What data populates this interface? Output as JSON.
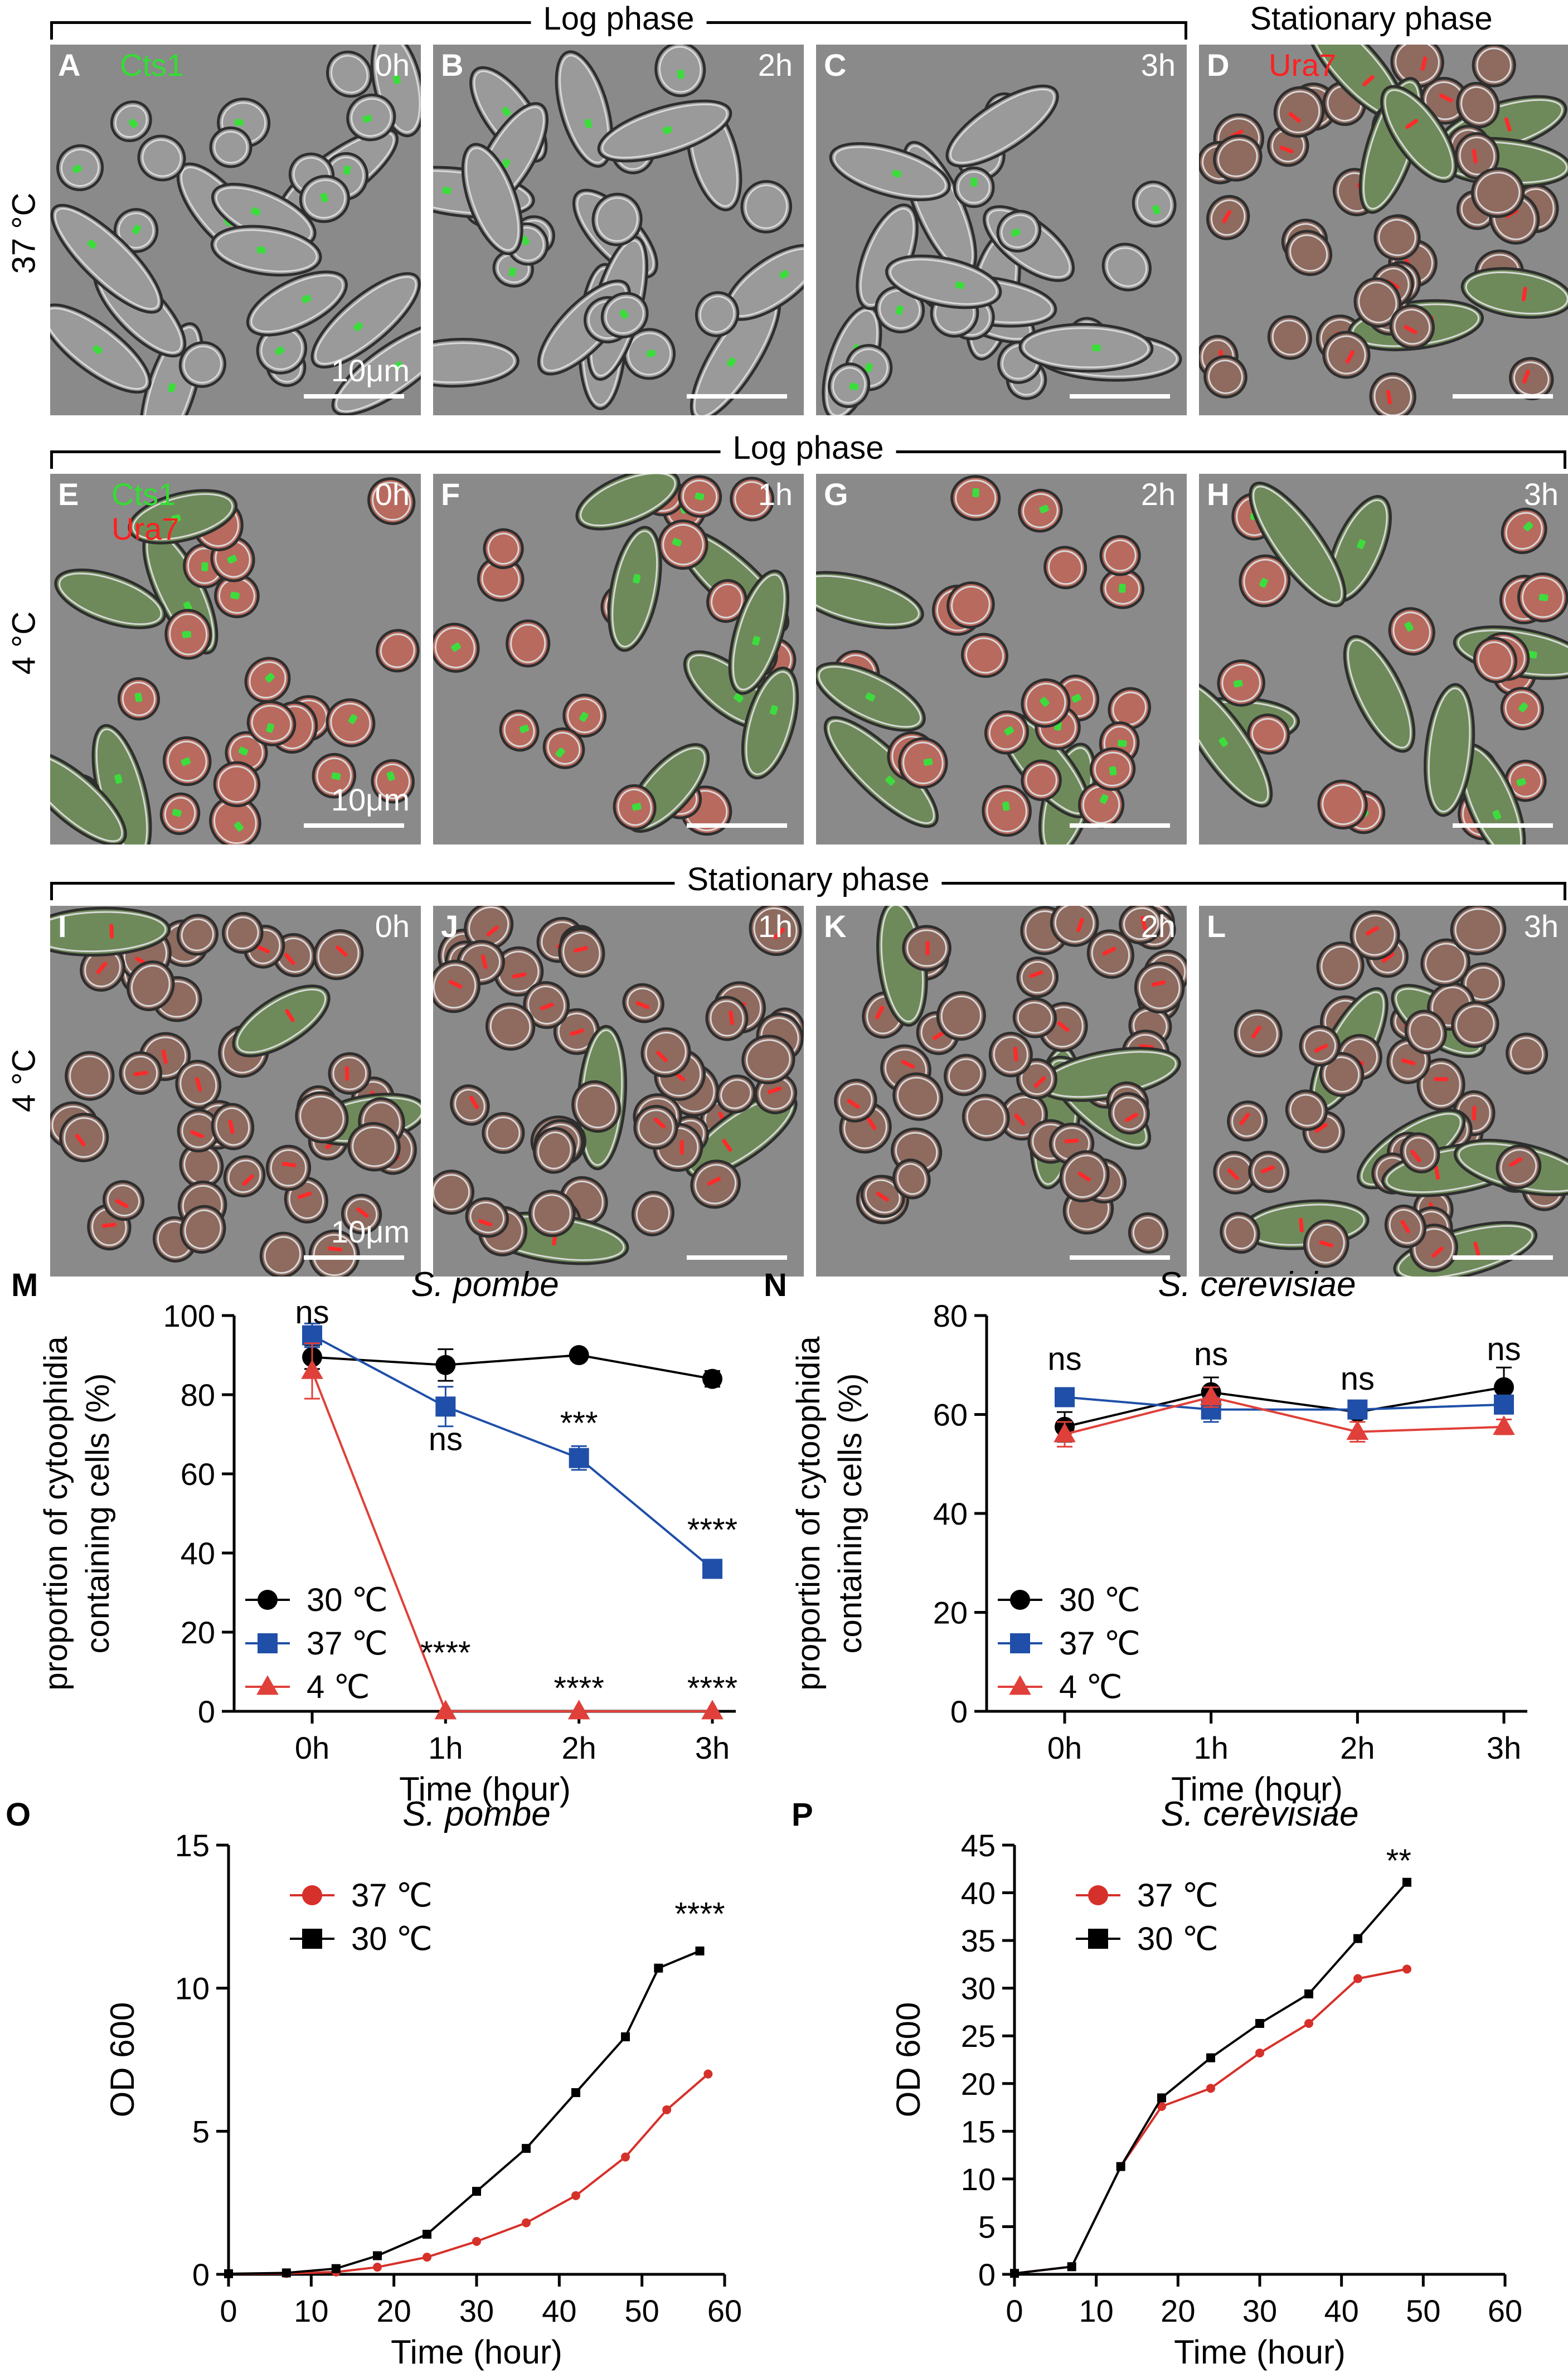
{
  "brackets": {
    "log_top": "Log phase",
    "stationary_top": "Stationary phase",
    "log_mid": "Log phase",
    "stationary_bottom": "Stationary phase"
  },
  "row_labels": {
    "r1": "37 °C",
    "r2": "4 °C",
    "r3": "4 °C"
  },
  "panels": [
    {
      "letter": "A",
      "time": "0h",
      "markers": [
        {
          "text": "Cts1",
          "color": "#33dd33"
        }
      ],
      "scale": "10μm",
      "cells": "log",
      "signal": "#3ddc3d"
    },
    {
      "letter": "B",
      "time": "2h",
      "markers": [],
      "scale": "",
      "cells": "log",
      "signal": "#3ddc3d"
    },
    {
      "letter": "C",
      "time": "3h",
      "markers": [],
      "scale": "",
      "cells": "log",
      "signal": "#3ddc3d"
    },
    {
      "letter": "D",
      "time": "",
      "markers": [
        {
          "text": "Ura7",
          "color": "#ff2020"
        }
      ],
      "scale": "",
      "cells": "stationary",
      "signal": "#ff2a2a"
    },
    {
      "letter": "E",
      "time": "0h",
      "markers": [
        {
          "text": "Cts1",
          "color": "#33dd33"
        },
        {
          "text": "Ura7",
          "color": "#ff2020"
        }
      ],
      "scale": "10μm",
      "cells": "mixed",
      "signal": "#3ddc3d"
    },
    {
      "letter": "F",
      "time": "1h",
      "markers": [],
      "scale": "",
      "cells": "mixed",
      "signal": "#3ddc3d"
    },
    {
      "letter": "G",
      "time": "2h",
      "markers": [],
      "scale": "",
      "cells": "mixed",
      "signal": "#3ddc3d"
    },
    {
      "letter": "H",
      "time": "3h",
      "markers": [],
      "scale": "",
      "cells": "mixed",
      "signal": "#3ddc3d"
    },
    {
      "letter": "I",
      "time": "0h",
      "markers": [],
      "scale": "10μm",
      "cells": "stationary",
      "signal": "#ff2a2a"
    },
    {
      "letter": "J",
      "time": "1h",
      "markers": [],
      "scale": "",
      "cells": "stationary",
      "signal": "#ff2a2a"
    },
    {
      "letter": "K",
      "time": "2h",
      "markers": [],
      "scale": "",
      "cells": "stationary",
      "signal": "#ff2a2a"
    },
    {
      "letter": "L",
      "time": "3h",
      "markers": [],
      "scale": "",
      "cells": "stationary",
      "signal": "#ff2a2a"
    }
  ],
  "chart_data": [
    {
      "id": "M",
      "letter": "M",
      "type": "line",
      "title": "S. pombe",
      "ylabel_line1": "proportion of cytoophidia",
      "ylabel_line2": "containing cells (%)",
      "xlabel": "Time (hour)",
      "categories": [
        "0h",
        "1h",
        "2h",
        "3h"
      ],
      "ylim": [
        0,
        100
      ],
      "yticks": [
        0,
        20,
        40,
        60,
        80,
        100
      ],
      "series": [
        {
          "name": "30 ℃",
          "color": "#000000",
          "marker": "circle",
          "values": [
            89.5,
            87.5,
            90,
            84
          ],
          "err": [
            3,
            4,
            1,
            2
          ]
        },
        {
          "name": "37 ℃",
          "color": "#1f4fa8",
          "marker": "square",
          "values": [
            95,
            77,
            64,
            36
          ],
          "err": [
            3,
            5,
            3,
            1
          ]
        },
        {
          "name": "4 ℃",
          "color": "#e0403a",
          "marker": "triangle",
          "values": [
            86,
            0,
            0,
            0
          ],
          "err": [
            7,
            0,
            0,
            0
          ]
        }
      ],
      "annotations": [
        {
          "cat": 0,
          "y": 98,
          "text": "ns"
        },
        {
          "cat": 1,
          "y": 66,
          "text": "ns"
        },
        {
          "cat": 1,
          "y": 12,
          "text": "****"
        },
        {
          "cat": 2,
          "y": 70,
          "text": "***"
        },
        {
          "cat": 2,
          "y": 3,
          "text": "****"
        },
        {
          "cat": 3,
          "y": 43,
          "text": "****"
        },
        {
          "cat": 3,
          "y": 3,
          "text": "****"
        }
      ]
    },
    {
      "id": "N",
      "letter": "N",
      "type": "line",
      "title": "S. cerevisiae",
      "ylabel_line1": "proportion of cytoophidia",
      "ylabel_line2": "containing cells (%)",
      "xlabel": "Time (hour)",
      "categories": [
        "0h",
        "1h",
        "2h",
        "3h"
      ],
      "ylim": [
        0,
        80
      ],
      "yticks": [
        0,
        20,
        40,
        60,
        80
      ],
      "series": [
        {
          "name": "30 ℃",
          "color": "#000000",
          "marker": "circle",
          "values": [
            57.5,
            64.5,
            60.5,
            65.5
          ],
          "err": [
            3,
            3,
            1,
            4
          ]
        },
        {
          "name": "37 ℃",
          "color": "#1f4fa8",
          "marker": "square",
          "values": [
            63.5,
            61,
            61,
            62
          ],
          "err": [
            1,
            2.5,
            1,
            1.5
          ]
        },
        {
          "name": "4 ℃",
          "color": "#e0403a",
          "marker": "triangle",
          "values": [
            56,
            63.5,
            56.5,
            57.5
          ],
          "err": [
            2.5,
            2,
            2,
            1.5
          ]
        }
      ],
      "annotations": [
        {
          "cat": 0,
          "y": 69,
          "text": "ns"
        },
        {
          "cat": 1,
          "y": 70,
          "text": "ns"
        },
        {
          "cat": 2,
          "y": 65,
          "text": "ns"
        },
        {
          "cat": 3,
          "y": 71,
          "text": "ns"
        }
      ]
    },
    {
      "id": "O",
      "letter": "O",
      "type": "line",
      "title": "S. pombe",
      "ylabel": "OD 600",
      "xlabel": "Time (hour)",
      "xlim": [
        0,
        60
      ],
      "xticks": [
        0,
        10,
        20,
        30,
        40,
        50,
        60
      ],
      "ylim": [
        0,
        15
      ],
      "yticks": [
        0,
        5,
        10,
        15
      ],
      "series": [
        {
          "name": "37 ℃",
          "color": "#d6302a",
          "marker": "circle",
          "x": [
            0,
            7,
            13,
            18,
            24,
            30,
            36,
            42,
            48,
            53,
            58
          ],
          "y": [
            0.02,
            0.03,
            0.08,
            0.25,
            0.6,
            1.15,
            1.8,
            2.75,
            4.1,
            5.75,
            7.0
          ]
        },
        {
          "name": "30 ℃",
          "color": "#000000",
          "marker": "square",
          "x": [
            0,
            7,
            13,
            18,
            24,
            30,
            36,
            42,
            48,
            52,
            57
          ],
          "y": [
            0.02,
            0.05,
            0.2,
            0.65,
            1.4,
            2.9,
            4.4,
            6.35,
            8.3,
            10.7,
            11.3
          ]
        }
      ],
      "annotations": [
        {
          "x": 57,
          "y": 12.2,
          "text": "****"
        }
      ]
    },
    {
      "id": "P",
      "letter": "P",
      "type": "line",
      "title": "S. cerevisiae",
      "ylabel": "OD 600",
      "xlabel": "Time (hour)",
      "xlim": [
        0,
        60
      ],
      "xticks": [
        0,
        10,
        20,
        30,
        40,
        50,
        60
      ],
      "ylim": [
        0,
        45
      ],
      "yticks": [
        0,
        5,
        10,
        15,
        20,
        25,
        30,
        35,
        40,
        45
      ],
      "series": [
        {
          "name": "37 ℃",
          "color": "#d6302a",
          "marker": "circle",
          "x": [
            0,
            7,
            13,
            18,
            24,
            30,
            36,
            42,
            48
          ],
          "y": [
            0.1,
            0.8,
            11.3,
            17.6,
            19.5,
            23.2,
            26.3,
            31.0,
            32.0
          ]
        },
        {
          "name": "30 ℃",
          "color": "#000000",
          "marker": "square",
          "x": [
            0,
            7,
            13,
            18,
            24,
            30,
            36,
            42,
            48
          ],
          "y": [
            0.1,
            0.8,
            11.3,
            18.5,
            22.7,
            26.3,
            29.4,
            35.2,
            41.1
          ]
        }
      ],
      "annotations": [
        {
          "x": 47,
          "y": 42.2,
          "text": "**"
        }
      ]
    }
  ]
}
